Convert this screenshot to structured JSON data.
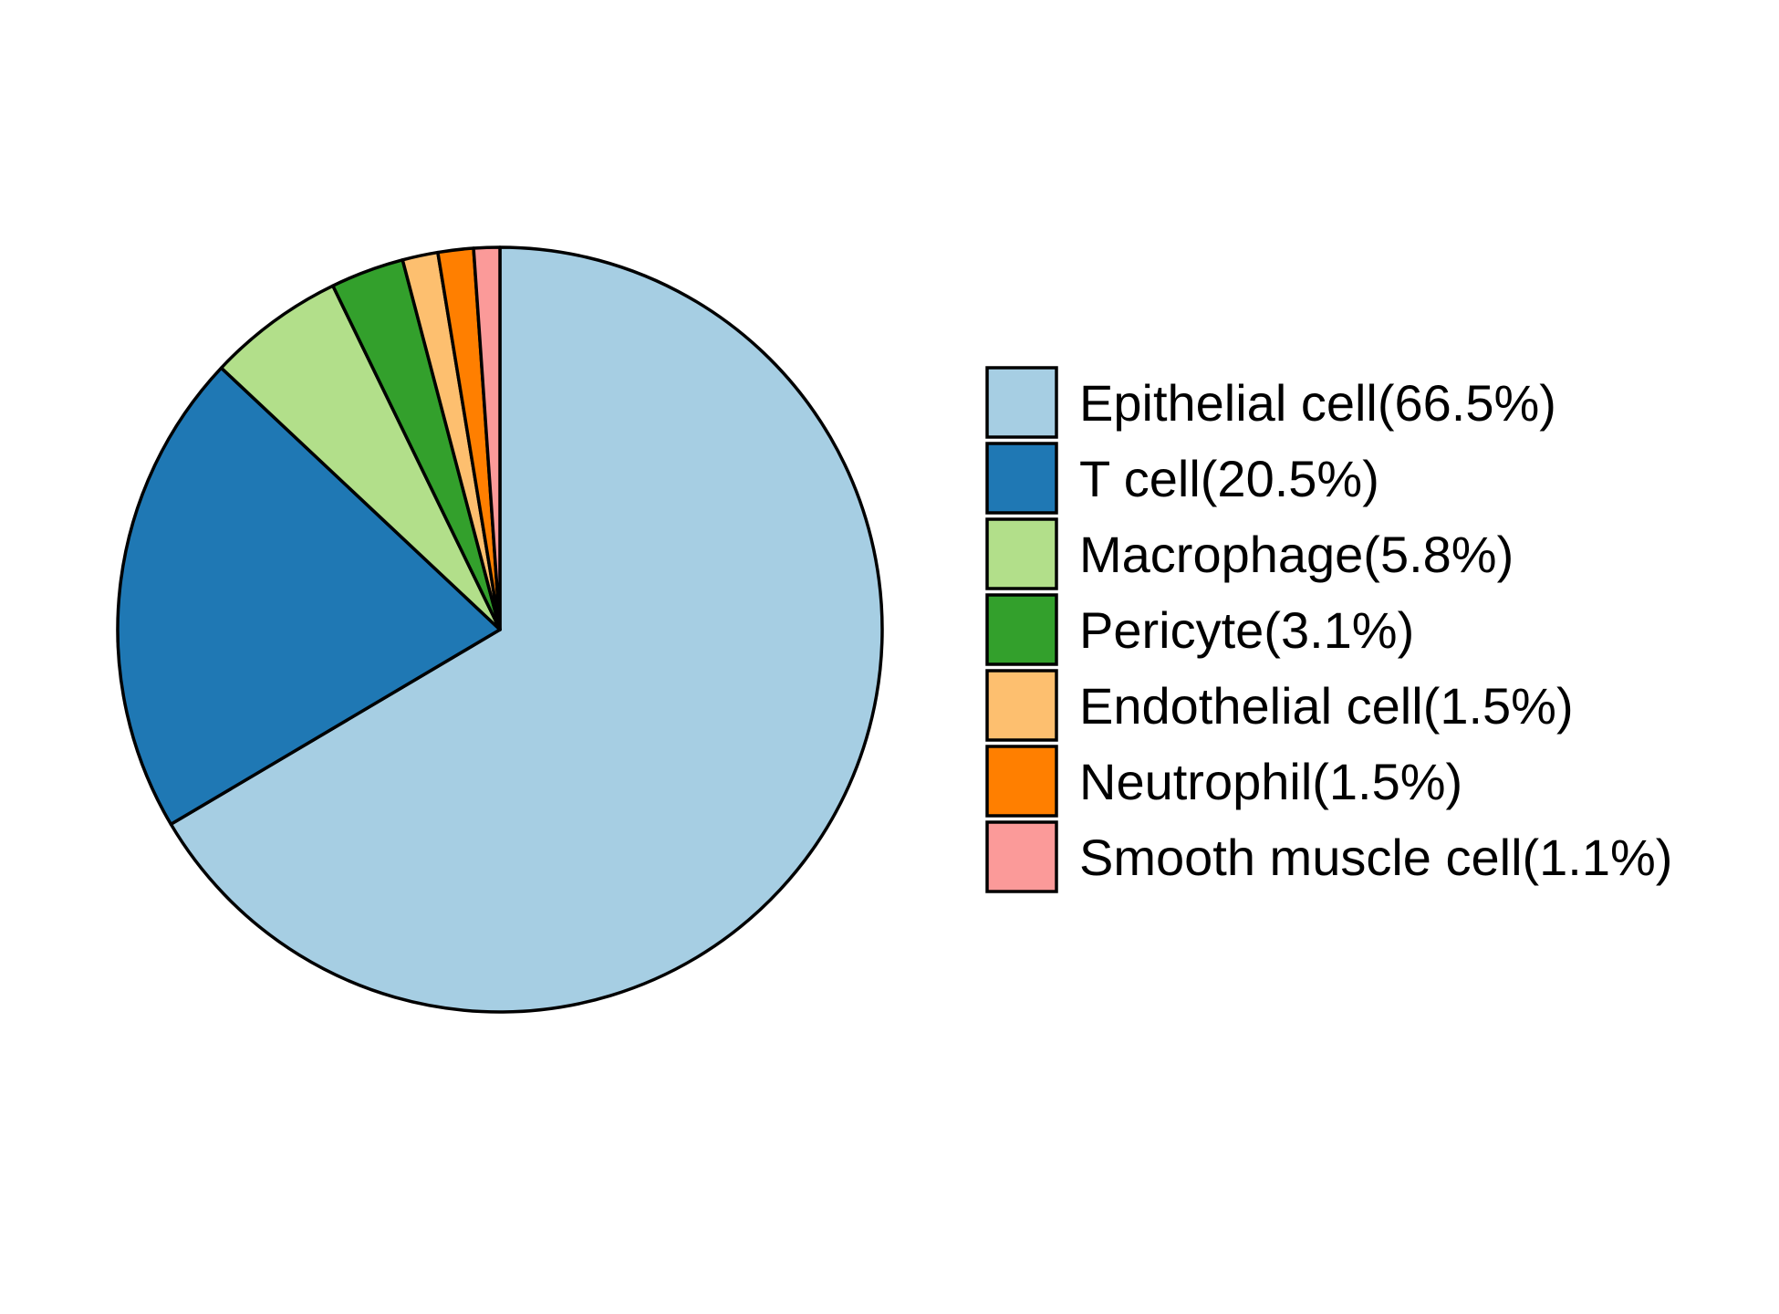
{
  "chart_data": {
    "type": "pie",
    "start": "12 o'clock",
    "direction": "clockwise",
    "legend_position": "right",
    "slices": [
      {
        "label": "Epithelial cell(66.5%)",
        "name": "Epithelial cell",
        "value": 66.5,
        "color": "#a6cee3"
      },
      {
        "label": "T cell(20.5%)",
        "name": "T cell",
        "value": 20.5,
        "color": "#1f78b4"
      },
      {
        "label": "Macrophage(5.8%)",
        "name": "Macrophage",
        "value": 5.8,
        "color": "#b2df8a"
      },
      {
        "label": "Pericyte(3.1%)",
        "name": "Pericyte",
        "value": 3.1,
        "color": "#33a02c"
      },
      {
        "label": "Endothelial cell(1.5%)",
        "name": "Endothelial cell",
        "value": 1.5,
        "color": "#fdbf6f"
      },
      {
        "label": "Neutrophil(1.5%)",
        "name": "Neutrophil",
        "value": 1.5,
        "color": "#ff7f00"
      },
      {
        "label": "Smooth muscle cell(1.1%)",
        "name": "Smooth muscle cell",
        "value": 1.1,
        "color": "#fb9a99"
      }
    ]
  }
}
